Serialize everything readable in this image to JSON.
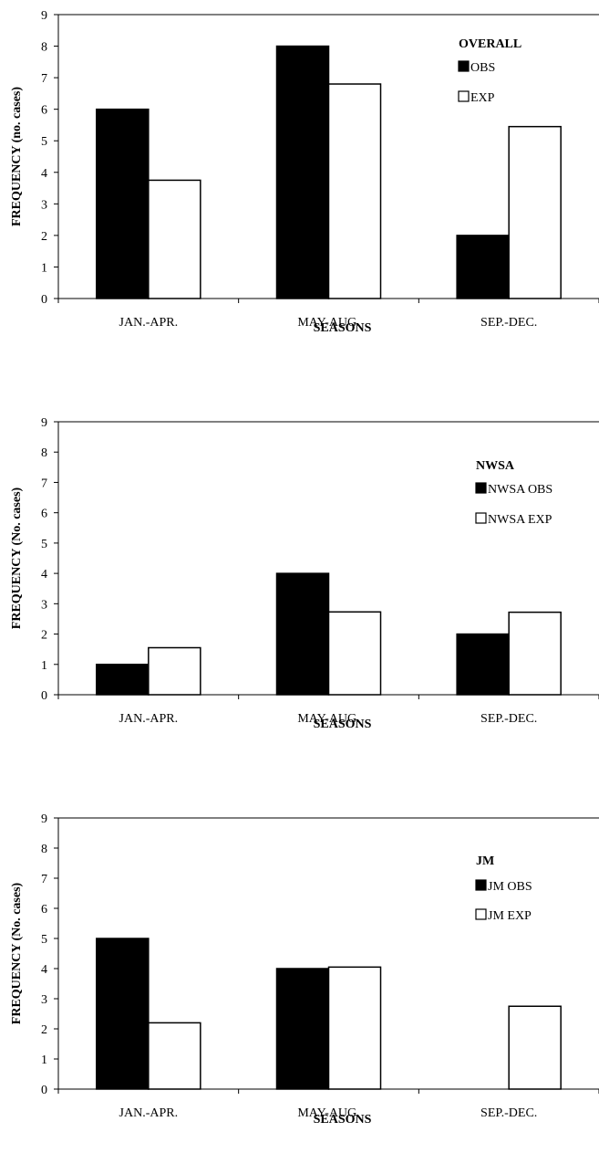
{
  "chart_data": [
    {
      "type": "bar",
      "categories": [
        "JAN.-APR.",
        "MAY-AUG.",
        "SEP.-DEC."
      ],
      "series": [
        {
          "name": "OBS",
          "values": [
            6,
            8,
            2
          ],
          "color": "#000000"
        },
        {
          "name": "EXP",
          "values": [
            3.75,
            6.8,
            5.45
          ],
          "color": "#ffffff"
        }
      ],
      "legend_title": "OVERALL",
      "xlabel": "SEASONS",
      "ylabel": "FREQUENCY (no. cases)",
      "ylim": [
        0,
        9
      ],
      "yticks": [
        "0",
        "1",
        "2",
        "3",
        "4",
        "5",
        "6",
        "7",
        "8",
        "9"
      ],
      "grid": false,
      "legend_position": "top-right"
    },
    {
      "type": "bar",
      "categories": [
        "JAN.-APR.",
        "MAY-AUG.",
        "SEP.-DEC."
      ],
      "series": [
        {
          "name": "NWSA OBS",
          "values": [
            1,
            4,
            2
          ],
          "color": "#000000"
        },
        {
          "name": "NWSA EXP",
          "values": [
            1.55,
            2.73,
            2.72
          ],
          "color": "#ffffff"
        }
      ],
      "legend_title": "NWSA",
      "xlabel": "SEASONS",
      "ylabel": "FREQUENCY (No. cases)",
      "ylim": [
        0,
        9
      ],
      "yticks": [
        "0",
        "1",
        "2",
        "3",
        "4",
        "5",
        "6",
        "7",
        "8",
        "9"
      ],
      "grid": false,
      "legend_position": "top-right"
    },
    {
      "type": "bar",
      "categories": [
        "JAN.-APR.",
        "MAY-AUG.",
        "SEP.-DEC."
      ],
      "series": [
        {
          "name": "JM OBS",
          "values": [
            5,
            4,
            0
          ],
          "color": "#000000"
        },
        {
          "name": "JM EXP",
          "values": [
            2.2,
            4.05,
            2.75
          ],
          "color": "#ffffff"
        }
      ],
      "legend_title": "JM",
      "xlabel": "SEASONS",
      "ylabel": "FREQUENCY (No. cases)",
      "ylim": [
        0,
        9
      ],
      "yticks": [
        "0",
        "1",
        "2",
        "3",
        "4",
        "5",
        "6",
        "7",
        "8",
        "9"
      ],
      "grid": false,
      "legend_position": "top-right"
    }
  ]
}
